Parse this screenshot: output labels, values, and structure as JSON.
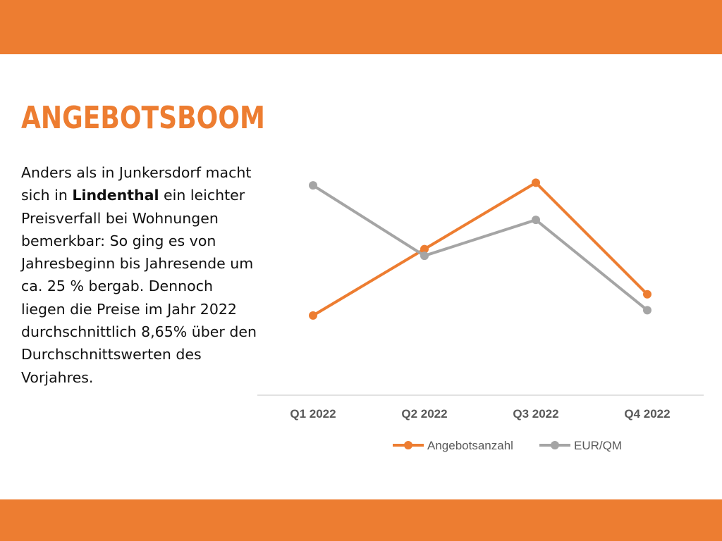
{
  "colors": {
    "accent": "#ED7D31",
    "gray": "#A5A5A5",
    "text": "#111111"
  },
  "slide": {
    "title": "ANGEBOTSBOOM",
    "text_part1": "Anders als in Junkersdorf macht sich in ",
    "text_bold": "Lindenthal",
    "text_part2": " ein leichter Preisverfall bei Wohnungen bemerkbar: So ging es von Jahresbeginn bis Jahresende um ca. 25 % bergab. Dennoch liegen die Preise  im Jahr 2022 durchschnittlich 8,65% über den Durchschnittswerten des Vorjahres."
  },
  "chart_data": {
    "type": "line",
    "categories": [
      "Q1 2022",
      "Q2 2022",
      "Q3 2022",
      "Q4 2022"
    ],
    "series": [
      {
        "name": "Angebotsanzahl",
        "color": "#ED7D31",
        "values": [
          30,
          55,
          80,
          38
        ]
      },
      {
        "name": "EUR/QM",
        "color": "#A5A5A5",
        "values": [
          79,
          52.5,
          66,
          32
        ]
      }
    ],
    "ylim": [
      0,
      100
    ],
    "grid": false,
    "y_axis_visible": false,
    "legend_position": "bottom"
  }
}
